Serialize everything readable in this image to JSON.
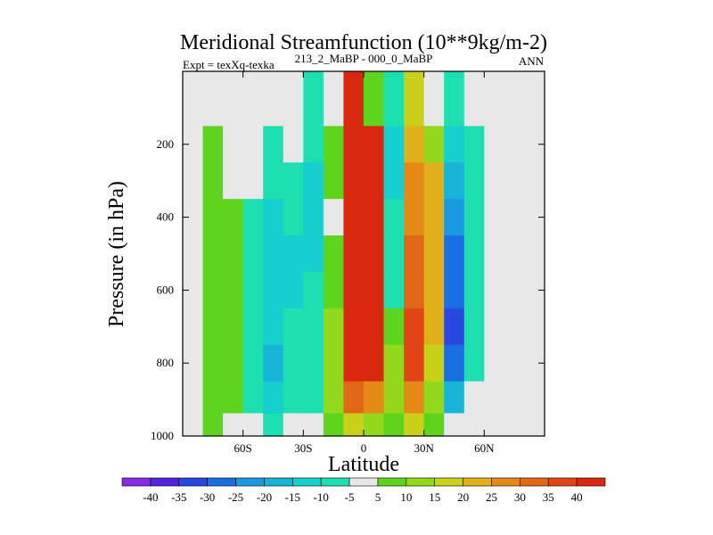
{
  "chart_data": {
    "type": "heatmap",
    "title": "Meridional Streamfunction (10**9kg/m-2)",
    "subtitle_left": "Expt = texXq-texka",
    "subtitle_center": "213_2_MaBP - 000_0_MaBP",
    "subtitle_right": "ANN",
    "xlabel": "Latitude",
    "ylabel": "Pressure (in hPa)",
    "xlim": [
      -90,
      90
    ],
    "ylim": [
      0,
      1000
    ],
    "y_inverted": true,
    "x_ticks": [
      {
        "value": -60,
        "label": "60S"
      },
      {
        "value": -30,
        "label": "30S"
      },
      {
        "value": 0,
        "label": "0"
      },
      {
        "value": 30,
        "label": "30N"
      },
      {
        "value": 60,
        "label": "60N"
      }
    ],
    "y_ticks": [
      {
        "value": 200,
        "label": "200"
      },
      {
        "value": 400,
        "label": "400"
      },
      {
        "value": 600,
        "label": "600"
      },
      {
        "value": 800,
        "label": "800"
      },
      {
        "value": 1000,
        "label": "1000"
      }
    ],
    "background_color": "#e8e8e8",
    "contour_levels": [
      -40,
      -35,
      -30,
      -25,
      -20,
      -15,
      -10,
      -5,
      5,
      10,
      15,
      20,
      25,
      30,
      35,
      40
    ],
    "colorbar_labels": [
      "-40",
      "-35",
      "-30",
      "-25",
      "-20",
      "-15",
      "-10",
      "-5",
      "5",
      "10",
      "15",
      "20",
      "25",
      "30",
      "35",
      "40"
    ],
    "colorbar_colors": [
      "#8a2be2",
      "#5522dd",
      "#2848e0",
      "#1a6fe0",
      "#1a98e0",
      "#17b4d8",
      "#17cfcf",
      "#1ddfb0",
      "#e8e8e8",
      "#5fd41f",
      "#93d81a",
      "#c8d01a",
      "#e0b11a",
      "#e68a17",
      "#e06817",
      "#e04417",
      "#d82810"
    ],
    "cells": {
      "lats": [
        -75,
        -65,
        -55,
        -45,
        -35,
        -25,
        -15,
        -5,
        5,
        15,
        25,
        35,
        45,
        55,
        65,
        75
      ],
      "levels": [
        100,
        200,
        300,
        400,
        500,
        600,
        700,
        800,
        900,
        975
      ],
      "values": [
        [
          0,
          0,
          0,
          -5,
          -5,
          -10,
          0,
          40,
          5,
          -10,
          15,
          -5,
          -10,
          -5,
          0,
          0
        ],
        [
          5,
          0,
          -5,
          -10,
          -5,
          -10,
          5,
          40,
          40,
          -15,
          20,
          10,
          -15,
          -10,
          0,
          0
        ],
        [
          5,
          0,
          -5,
          -10,
          -10,
          -15,
          5,
          40,
          40,
          -15,
          25,
          20,
          -20,
          -10,
          -5,
          0
        ],
        [
          5,
          5,
          -10,
          -15,
          -10,
          -15,
          0,
          40,
          40,
          -10,
          25,
          20,
          -25,
          -10,
          -5,
          0
        ],
        [
          5,
          5,
          -10,
          -15,
          -15,
          -15,
          5,
          40,
          40,
          -10,
          30,
          20,
          -30,
          -10,
          -5,
          0
        ],
        [
          5,
          5,
          -10,
          -15,
          -15,
          -10,
          5,
          40,
          40,
          -10,
          30,
          20,
          -30,
          -10,
          -5,
          0
        ],
        [
          5,
          5,
          -10,
          -15,
          -10,
          -10,
          10,
          40,
          40,
          5,
          35,
          20,
          -35,
          -10,
          -5,
          0
        ],
        [
          5,
          5,
          -10,
          -20,
          -10,
          -10,
          10,
          40,
          40,
          10,
          35,
          15,
          -30,
          -10,
          -5,
          0
        ],
        [
          5,
          5,
          -10,
          -15,
          -10,
          -10,
          10,
          30,
          25,
          10,
          25,
          10,
          -20,
          -5,
          -5,
          0
        ],
        [
          5,
          0,
          -5,
          -10,
          -5,
          -5,
          5,
          15,
          10,
          5,
          15,
          5,
          -5,
          -5,
          0,
          0
        ]
      ]
    }
  }
}
